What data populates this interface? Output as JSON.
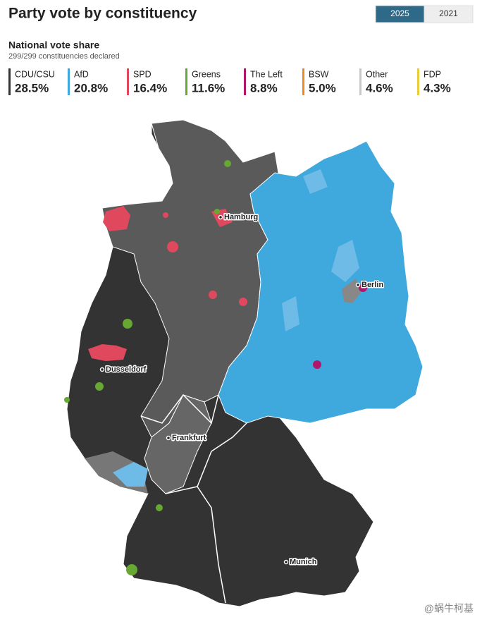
{
  "header": {
    "title": "Party vote by constituency",
    "year_toggle": [
      "2025",
      "2021"
    ],
    "active_year": "2025"
  },
  "summary": {
    "title": "National vote share",
    "declared": "299/299 constituencies declared"
  },
  "legend": [
    {
      "name": "CDU/CSU",
      "share": "28.5%",
      "color": "#333333"
    },
    {
      "name": "AfD",
      "share": "20.8%",
      "color": "#3fa8dd"
    },
    {
      "name": "SPD",
      "share": "16.4%",
      "color": "#e0485e"
    },
    {
      "name": "Greens",
      "share": "11.6%",
      "color": "#66a832"
    },
    {
      "name": "The Left",
      "share": "8.8%",
      "color": "#b0176a"
    },
    {
      "name": "BSW",
      "share": "5.0%",
      "color": "#f08a1c"
    },
    {
      "name": "Other",
      "share": "4.6%",
      "color": "#c8c8c8"
    },
    {
      "name": "FDP",
      "share": "4.3%",
      "color": "#e8cc3a"
    }
  ],
  "map": {
    "cities": [
      "Hamburg",
      "Berlin",
      "Dusseldorf",
      "Frankfurt",
      "Munich"
    ]
  },
  "watermark": "@蜗牛柯基"
}
